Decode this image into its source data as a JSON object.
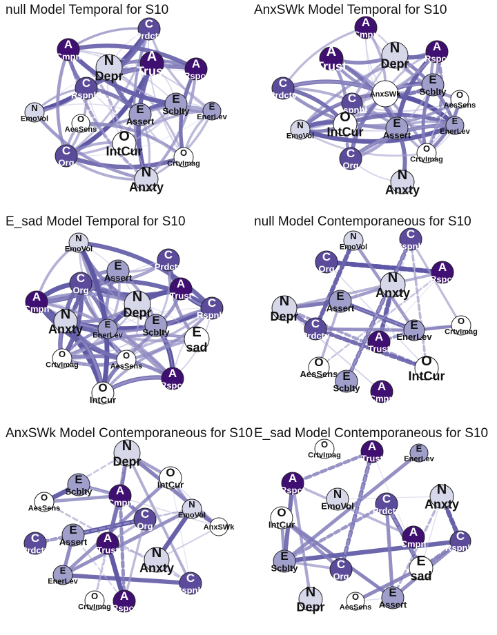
{
  "panels": [
    {
      "title": "null Model Temporal for S10",
      "nodes": [
        {
          "letter": "C",
          "label": "Prdctv",
          "shade": 3
        },
        {
          "letter": "A",
          "label": "Cmpn",
          "shade": 4
        },
        {
          "letter": "N",
          "label": "Depr",
          "shade": 1
        },
        {
          "letter": "A",
          "label": "Trust",
          "shade": 4
        },
        {
          "letter": "A",
          "label": "Rspct",
          "shade": 4
        },
        {
          "letter": "C",
          "label": "Rspnbl",
          "shade": 3
        },
        {
          "letter": "N",
          "label": "EmoVol",
          "shade": 1
        },
        {
          "letter": "O",
          "label": "AesSens",
          "shade": 0
        },
        {
          "letter": "E",
          "label": "Assert",
          "shade": 2
        },
        {
          "letter": "E",
          "label": "Scblty",
          "shade": 2
        },
        {
          "letter": "E",
          "label": "EnerLev",
          "shade": 2
        },
        {
          "letter": "O",
          "label": "IntCur",
          "shade": 0
        },
        {
          "letter": "C",
          "label": "Org",
          "shade": 3
        },
        {
          "letter": "O",
          "label": "CrtvImag",
          "shade": 0
        },
        {
          "letter": "N",
          "label": "Anxty",
          "shade": 1
        }
      ]
    },
    {
      "title": "AnxSWk Model Temporal for S10",
      "nodes": [
        {
          "letter": "A",
          "label": "Cmpn",
          "shade": 4
        },
        {
          "letter": "A",
          "label": "Trust",
          "shade": 4
        },
        {
          "letter": "N",
          "label": "Depr",
          "shade": 1
        },
        {
          "letter": "A",
          "label": "Rspct",
          "shade": 4
        },
        {
          "letter": "C",
          "label": "Prdctv",
          "shade": 3
        },
        {
          "letter": "C",
          "label": "Rspnbl",
          "shade": 3
        },
        {
          "letter": "",
          "label": "AnxSWk",
          "shade": 0
        },
        {
          "letter": "E",
          "label": "Scblty",
          "shade": 2
        },
        {
          "letter": "O",
          "label": "AesSens",
          "shade": 0
        },
        {
          "letter": "N",
          "label": "EmoVol",
          "shade": 1
        },
        {
          "letter": "O",
          "label": "IntCur",
          "shade": 0
        },
        {
          "letter": "E",
          "label": "Assert",
          "shade": 2
        },
        {
          "letter": "E",
          "label": "EnerLev",
          "shade": 2
        },
        {
          "letter": "C",
          "label": "Org",
          "shade": 3
        },
        {
          "letter": "O",
          "label": "CrtvImag",
          "shade": 0
        },
        {
          "letter": "N",
          "label": "Anxty",
          "shade": 1
        }
      ]
    },
    {
      "title": "E_sad Model Temporal for S10",
      "nodes": [
        {
          "letter": "N",
          "label": "EmoVol",
          "shade": 1
        },
        {
          "letter": "C",
          "label": "Prdctv",
          "shade": 3
        },
        {
          "letter": "E",
          "label": "Assert",
          "shade": 2
        },
        {
          "letter": "C",
          "label": "Org",
          "shade": 3
        },
        {
          "letter": "A",
          "label": "Trust",
          "shade": 4
        },
        {
          "letter": "A",
          "label": "Cmpn",
          "shade": 4
        },
        {
          "letter": "N",
          "label": "Depr",
          "shade": 1
        },
        {
          "letter": "C",
          "label": "Rspnbl",
          "shade": 3
        },
        {
          "letter": "N",
          "label": "Anxty",
          "shade": 1
        },
        {
          "letter": "E",
          "label": "EnerLev",
          "shade": 2
        },
        {
          "letter": "E",
          "label": "Scblty",
          "shade": 2
        },
        {
          "letter": "E",
          "label": "sad",
          "shade": 0
        },
        {
          "letter": "O",
          "label": "CrtvImag",
          "shade": 0
        },
        {
          "letter": "O",
          "label": "AesSens",
          "shade": 0
        },
        {
          "letter": "A",
          "label": "Rspct",
          "shade": 4
        },
        {
          "letter": "O",
          "label": "IntCur",
          "shade": 0
        }
      ]
    },
    {
      "title": "null Model Contemporaneous for S10",
      "nodes": [
        {
          "letter": "N",
          "label": "EmoVol",
          "shade": 1
        },
        {
          "letter": "C",
          "label": "Rspnbl",
          "shade": 3
        },
        {
          "letter": "C",
          "label": "Org",
          "shade": 3
        },
        {
          "letter": "A",
          "label": "Rspct",
          "shade": 4
        },
        {
          "letter": "N",
          "label": "Anxty",
          "shade": 1
        },
        {
          "letter": "N",
          "label": "Depr",
          "shade": 1
        },
        {
          "letter": "E",
          "label": "Assert",
          "shade": 2
        },
        {
          "letter": "C",
          "label": "Prdctv",
          "shade": 3
        },
        {
          "letter": "E",
          "label": "EnerLev",
          "shade": 2
        },
        {
          "letter": "O",
          "label": "CrtvImag",
          "shade": 0
        },
        {
          "letter": "A",
          "label": "Trust",
          "shade": 4
        },
        {
          "letter": "O",
          "label": "AesSens",
          "shade": 0
        },
        {
          "letter": "O",
          "label": "IntCur",
          "shade": 0
        },
        {
          "letter": "E",
          "label": "Scblty",
          "shade": 2
        },
        {
          "letter": "A",
          "label": "Cmpn",
          "shade": 4
        }
      ]
    },
    {
      "title": "AnxSWk Model Contemporaneous for S10",
      "nodes": [
        {
          "letter": "N",
          "label": "Depr",
          "shade": 1
        },
        {
          "letter": "O",
          "label": "IntCur",
          "shade": 0
        },
        {
          "letter": "E",
          "label": "Scblty",
          "shade": 2
        },
        {
          "letter": "A",
          "label": "Cmpn",
          "shade": 4
        },
        {
          "letter": "O",
          "label": "AesSens",
          "shade": 0
        },
        {
          "letter": "N",
          "label": "EmoVol",
          "shade": 1
        },
        {
          "letter": "C",
          "label": "Org",
          "shade": 3
        },
        {
          "letter": "",
          "label": "AnxSWk",
          "shade": 0
        },
        {
          "letter": "C",
          "label": "Prdctv",
          "shade": 3
        },
        {
          "letter": "E",
          "label": "Assert",
          "shade": 2
        },
        {
          "letter": "A",
          "label": "Trust",
          "shade": 4
        },
        {
          "letter": "N",
          "label": "Anxty",
          "shade": 1
        },
        {
          "letter": "E",
          "label": "EnerLev",
          "shade": 2
        },
        {
          "letter": "C",
          "label": "Rspnbl",
          "shade": 3
        },
        {
          "letter": "O",
          "label": "CrtvImag",
          "shade": 0
        },
        {
          "letter": "A",
          "label": "Rspct",
          "shade": 4
        }
      ]
    },
    {
      "title": "E_sad Model Contemporaneous for S10",
      "nodes": [
        {
          "letter": "O",
          "label": "CrtvImag",
          "shade": 0
        },
        {
          "letter": "A",
          "label": "Trust",
          "shade": 4
        },
        {
          "letter": "E",
          "label": "EnerLev",
          "shade": 2
        },
        {
          "letter": "A",
          "label": "Rspct",
          "shade": 4
        },
        {
          "letter": "N",
          "label": "EmoVol",
          "shade": 1
        },
        {
          "letter": "C",
          "label": "Prdctv",
          "shade": 3
        },
        {
          "letter": "N",
          "label": "Anxty",
          "shade": 1
        },
        {
          "letter": "O",
          "label": "IntCur",
          "shade": 0
        },
        {
          "letter": "A",
          "label": "Cmpn",
          "shade": 4
        },
        {
          "letter": "C",
          "label": "Rspnbl",
          "shade": 3
        },
        {
          "letter": "E",
          "label": "Scblty",
          "shade": 2
        },
        {
          "letter": "C",
          "label": "Org",
          "shade": 3
        },
        {
          "letter": "E",
          "label": "sad",
          "shade": 0
        },
        {
          "letter": "N",
          "label": "Depr",
          "shade": 1
        },
        {
          "letter": "O",
          "label": "AesSens",
          "shade": 0
        },
        {
          "letter": "E",
          "label": "Assert",
          "shade": 2
        }
      ]
    }
  ],
  "colors": {
    "shade_fill": [
      "#ffffff",
      "#d7d7ea",
      "#a09fcb",
      "#5c4b9a",
      "#3f0f72"
    ],
    "edge_dark": "#5b55a3",
    "edge_light": "#c9c6e3"
  }
}
